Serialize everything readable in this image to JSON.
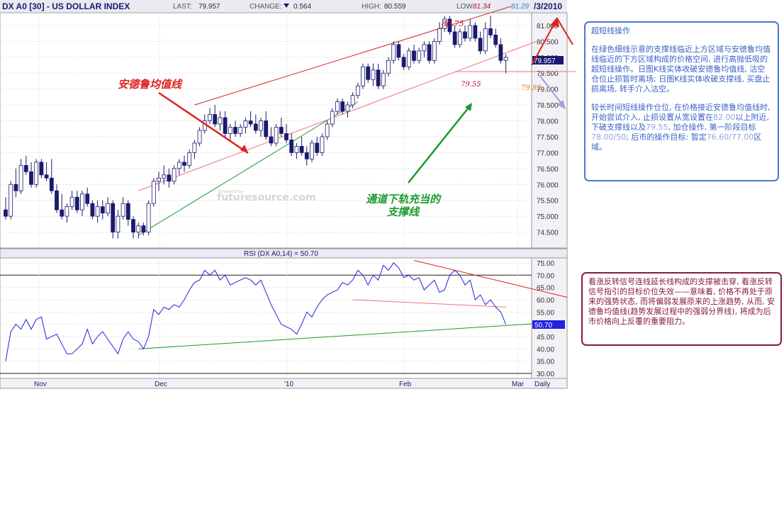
{
  "header": {
    "symbol": "DX A0 [30] - US DOLLAR INDEX",
    "last_label": "LAST:",
    "last_value": "79.957",
    "change_label": "CHANGE:",
    "change_value": "0.564",
    "high_label": "HIGH:",
    "high_value": "80.559",
    "low_label": "LOW",
    "low_value": "81.34",
    "extra_value": "81.29",
    "date": "/3/2010"
  },
  "watermark": {
    "line1": "Powered by",
    "line2": "futuresource.com"
  },
  "annotations": {
    "andrews": "安德鲁均值线",
    "channel_line1": "通道下轨充当的",
    "channel_line2": "支撑线",
    "p_8075": "80.75",
    "p_7955": "79.55",
    "p_7982": "79.82"
  },
  "note_short": {
    "title": "超短线操作",
    "body": "在绿色细线示意的支撑线临近上方区域与安德鲁均值线临近的下方区域构成的价格空间, 进行高抛低吸的超短线操作。日图K线实体收破安德鲁均值线, 沽空仓位止损暂时离场; 日图K线实体收破支撑线, 买盘止损离场, 转手介入沽空。",
    "body2_pre": "较长时间短线操作仓位, 在价格接近安德鲁均值线时, 开始尝试介入, 止损设置从宽设置在",
    "hi1": "82.00",
    "body2_mid": "以上附近, 下破支撑线以及",
    "hi2": "79.55",
    "body2_mid2": ", 加仓操作, 第一阶段目标",
    "hi3": "78.00/50",
    "body2_post": "; 后市的操作目标: 暂定",
    "hi4": "76.60/77.00",
    "body2_end": "区域。"
  },
  "note_rsi": {
    "text": "看涨反转信号连线延长线构成的支撑被击穿, 看涨反转信号指引的目标价位失效——意味着, 价格不再处于原来的强势状态, 而将偏弱发展原来的上涨趋势, 从而, 安德鲁均值线(趋势发展过程中的强弱分界线), 将成为后市价格向上反覆的重要阻力。"
  },
  "colors": {
    "up_candle": "#ffffff",
    "down_candle": "#1a1a6e",
    "rsi_line": "#2222dd",
    "red": "#e02020",
    "green": "#1a9a30",
    "pink": "#f07080",
    "lavender": "#a99bd4"
  },
  "chart_data": [
    {
      "type": "candlestick",
      "ylim": [
        74.0,
        81.4
      ],
      "y_ticks": [
        "81.000",
        "80.500",
        "80.000",
        "79.500",
        "79.000",
        "78.500",
        "78.000",
        "77.500",
        "77.000",
        "76.500",
        "76.000",
        "75.500",
        "75.000",
        "74.500"
      ],
      "x_ticks": [
        "Nov",
        "Dec",
        "'10",
        "Feb",
        "Mar"
      ],
      "period_label": "Daily",
      "last_price_label": "79.957",
      "ohlc": [
        [
          75.2,
          75.6,
          74.9,
          75.0
        ],
        [
          75.0,
          76.1,
          74.9,
          76.0
        ],
        [
          76.0,
          76.5,
          75.6,
          75.8
        ],
        [
          75.8,
          76.8,
          75.7,
          76.6
        ],
        [
          76.6,
          76.9,
          76.3,
          76.4
        ],
        [
          76.4,
          76.7,
          75.9,
          76.0
        ],
        [
          76.0,
          76.8,
          75.9,
          76.7
        ],
        [
          76.7,
          76.8,
          76.2,
          76.3
        ],
        [
          76.3,
          76.7,
          76.1,
          76.2
        ],
        [
          76.2,
          76.8,
          75.7,
          75.8
        ],
        [
          75.8,
          76.0,
          75.1,
          75.2
        ],
        [
          75.2,
          75.7,
          74.9,
          75.0
        ],
        [
          75.0,
          75.4,
          74.8,
          75.3
        ],
        [
          75.3,
          75.8,
          75.2,
          75.6
        ],
        [
          75.6,
          75.8,
          75.1,
          75.2
        ],
        [
          75.2,
          75.8,
          75.0,
          75.7
        ],
        [
          75.7,
          75.9,
          75.3,
          75.4
        ],
        [
          75.4,
          75.5,
          74.9,
          75.0
        ],
        [
          75.0,
          75.5,
          74.8,
          75.3
        ],
        [
          75.3,
          75.5,
          74.9,
          75.1
        ],
        [
          75.1,
          75.6,
          75.0,
          75.4
        ],
        [
          75.4,
          75.5,
          74.3,
          74.5
        ],
        [
          74.5,
          75.2,
          74.3,
          75.0
        ],
        [
          75.0,
          75.6,
          74.9,
          75.4
        ],
        [
          75.4,
          75.5,
          74.7,
          74.9
        ],
        [
          74.9,
          75.0,
          74.3,
          74.5
        ],
        [
          74.5,
          74.8,
          74.3,
          74.7
        ],
        [
          74.7,
          74.8,
          74.4,
          74.5
        ],
        [
          74.5,
          75.5,
          74.4,
          75.4
        ],
        [
          75.4,
          76.2,
          75.3,
          76.1
        ],
        [
          76.1,
          76.4,
          75.8,
          76.2
        ],
        [
          76.2,
          76.6,
          76.0,
          76.3
        ],
        [
          76.3,
          76.5,
          75.9,
          76.1
        ],
        [
          76.1,
          76.6,
          76.0,
          76.5
        ],
        [
          76.5,
          76.8,
          76.3,
          76.7
        ],
        [
          76.7,
          76.9,
          76.4,
          76.6
        ],
        [
          76.6,
          77.1,
          76.5,
          77.0
        ],
        [
          77.0,
          77.4,
          76.8,
          77.3
        ],
        [
          77.3,
          77.8,
          77.2,
          77.7
        ],
        [
          77.7,
          78.2,
          77.6,
          78.0
        ],
        [
          78.0,
          78.4,
          77.9,
          78.2
        ],
        [
          78.2,
          78.5,
          77.8,
          77.9
        ],
        [
          77.9,
          78.3,
          77.7,
          78.1
        ],
        [
          78.1,
          78.3,
          77.5,
          77.6
        ],
        [
          77.6,
          77.9,
          77.4,
          77.8
        ],
        [
          77.8,
          78.0,
          77.5,
          77.6
        ],
        [
          77.6,
          77.9,
          77.5,
          77.8
        ],
        [
          77.8,
          78.1,
          77.6,
          78.0
        ],
        [
          78.0,
          78.3,
          77.8,
          77.9
        ],
        [
          77.9,
          78.2,
          77.6,
          77.7
        ],
        [
          77.7,
          78.1,
          77.5,
          78.0
        ],
        [
          78.0,
          78.3,
          77.4,
          77.5
        ],
        [
          77.5,
          77.8,
          77.2,
          77.3
        ],
        [
          77.3,
          77.9,
          77.2,
          77.8
        ],
        [
          77.8,
          78.1,
          77.5,
          77.6
        ],
        [
          77.6,
          77.9,
          77.3,
          77.4
        ],
        [
          77.4,
          77.6,
          76.9,
          77.0
        ],
        [
          77.0,
          77.3,
          76.8,
          77.2
        ],
        [
          77.2,
          77.5,
          76.9,
          77.0
        ],
        [
          77.0,
          77.2,
          76.6,
          76.8
        ],
        [
          76.8,
          77.4,
          76.7,
          77.3
        ],
        [
          77.3,
          77.5,
          76.9,
          77.0
        ],
        [
          77.0,
          77.6,
          76.9,
          77.5
        ],
        [
          77.5,
          78.0,
          77.4,
          77.9
        ],
        [
          77.9,
          78.4,
          77.8,
          78.3
        ],
        [
          78.3,
          78.7,
          78.2,
          78.6
        ],
        [
          78.6,
          78.7,
          78.2,
          78.3
        ],
        [
          78.3,
          78.6,
          78.1,
          78.5
        ],
        [
          78.5,
          78.9,
          78.4,
          78.8
        ],
        [
          78.8,
          79.2,
          78.7,
          79.1
        ],
        [
          79.1,
          79.8,
          79.0,
          79.7
        ],
        [
          79.7,
          79.8,
          79.2,
          79.3
        ],
        [
          79.3,
          79.8,
          79.1,
          79.6
        ],
        [
          79.6,
          79.8,
          79.0,
          79.1
        ],
        [
          79.1,
          79.6,
          79.0,
          79.5
        ],
        [
          79.5,
          80.0,
          79.4,
          79.9
        ],
        [
          79.9,
          80.5,
          79.8,
          80.4
        ],
        [
          80.4,
          80.5,
          79.9,
          80.0
        ],
        [
          80.0,
          80.1,
          79.6,
          79.7
        ],
        [
          79.7,
          80.3,
          79.6,
          80.2
        ],
        [
          80.2,
          80.4,
          79.8,
          79.9
        ],
        [
          79.9,
          80.3,
          79.8,
          80.2
        ],
        [
          80.2,
          80.5,
          80.0,
          80.4
        ],
        [
          80.4,
          80.5,
          79.8,
          79.9
        ],
        [
          79.9,
          80.6,
          79.8,
          80.5
        ],
        [
          80.5,
          81.1,
          80.4,
          80.9
        ],
        [
          80.9,
          81.3,
          80.8,
          81.2
        ],
        [
          81.2,
          81.3,
          80.7,
          80.8
        ],
        [
          80.8,
          81.0,
          80.3,
          80.4
        ],
        [
          80.4,
          80.9,
          80.3,
          80.8
        ],
        [
          80.8,
          81.0,
          80.5,
          80.6
        ],
        [
          80.6,
          81.2,
          80.5,
          81.0
        ],
        [
          81.0,
          81.1,
          80.5,
          80.6
        ],
        [
          80.6,
          80.8,
          80.1,
          80.2
        ],
        [
          80.2,
          81.1,
          80.1,
          80.9
        ],
        [
          80.9,
          81.3,
          80.6,
          80.7
        ],
        [
          80.7,
          80.9,
          80.3,
          80.4
        ],
        [
          80.4,
          80.6,
          79.8,
          79.9
        ],
        [
          79.9,
          80.1,
          79.5,
          80.0
        ]
      ],
      "channel_upper": [
        [
          37,
          78.5
        ],
        [
          99,
          81.6
        ]
      ],
      "channel_lower": [
        [
          26,
          74.4
        ],
        [
          69,
          78.6
        ]
      ],
      "andrews_line": [
        [
          26,
          75.8
        ],
        [
          104,
          80.5
        ]
      ],
      "horizontal_ref": 79.55
    },
    {
      "type": "line",
      "title": "RSI (DX A0,14) = 50.70",
      "ylim": [
        28,
        77
      ],
      "y_ticks": [
        "75.00",
        "70.00",
        "65.00",
        "60.00",
        "55.00",
        "50.00",
        "45.00",
        "40.00",
        "35.00",
        "30.00"
      ],
      "ref_levels": [
        70,
        30
      ],
      "last_value_label": "50.70",
      "values": [
        35,
        47,
        50,
        48,
        52,
        48,
        52,
        53,
        44,
        45,
        46,
        42,
        38,
        38,
        40,
        42,
        48,
        42,
        45,
        47,
        44,
        41,
        38,
        44,
        47,
        44,
        43,
        40,
        45,
        56,
        54,
        57,
        56,
        58,
        57,
        60,
        64,
        67,
        68,
        72,
        70,
        72,
        68,
        70,
        66,
        67,
        68,
        69,
        68,
        66,
        68,
        63,
        58,
        54,
        50,
        49,
        48,
        46,
        50,
        55,
        53,
        57,
        60,
        62,
        63,
        64,
        67,
        66,
        68,
        72,
        70,
        66,
        70,
        68,
        74,
        72,
        75,
        73,
        69,
        70,
        68,
        69,
        64,
        66,
        68,
        63,
        64,
        70,
        72,
        70,
        66,
        68,
        60,
        62,
        58,
        60,
        57,
        55,
        50
      ],
      "support_line": [
        [
          26,
          40.0
        ],
        [
          104,
          50.3
        ]
      ],
      "resistance_line": [
        [
          80,
          76.0
        ],
        [
          110,
          61.0
        ]
      ],
      "pink_line": [
        [
          68,
          60.0
        ],
        [
          98,
          57.0
        ]
      ]
    }
  ]
}
